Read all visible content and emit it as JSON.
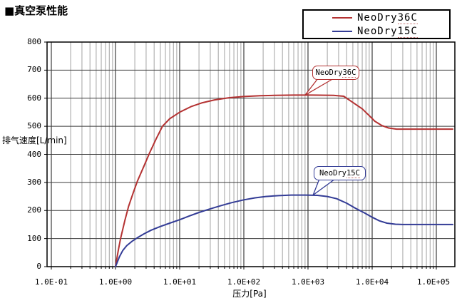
{
  "page": {
    "title": "■真空泵性能"
  },
  "legend": {
    "items": [
      {
        "label": "NeoDry36C",
        "label_base": "NeoDry",
        "label_suffix": "36C",
        "color": "#b43232"
      },
      {
        "label": "NeoDry15C",
        "label_base": "NeoDry",
        "label_suffix": "15C",
        "color": "#333c96"
      }
    ]
  },
  "chart_data": {
    "type": "line",
    "title": "真空泵性能",
    "xlabel": "压力[Pa]",
    "ylabel": "排气速度[L/min]",
    "x_scale": "log",
    "xlim": [
      0.1,
      180000
    ],
    "ylim": [
      0,
      800
    ],
    "grid": "on",
    "legend_position": "top-right",
    "x_ticks": [
      "1.0E-01",
      "1.0E+00",
      "1.0E+01",
      "1.0E+02",
      "1.0E+03",
      "1.0E+04",
      "1.0E+05"
    ],
    "y_ticks": [
      "800",
      "700",
      "600",
      "500",
      "400",
      "300",
      "200",
      "100",
      "0"
    ],
    "colors": {
      "neodry36c": "#b43232",
      "neodry15c": "#333c96",
      "grid_major": "#3c3c3c",
      "grid_minor": "#a2a2a2",
      "frame": "#000000"
    },
    "series": [
      {
        "name": "NeoDry36C",
        "color": "#b43232",
        "points": [
          [
            1.0,
            0
          ],
          [
            1.1,
            55
          ],
          [
            1.2,
            100
          ],
          [
            1.4,
            165
          ],
          [
            1.6,
            215
          ],
          [
            1.9,
            265
          ],
          [
            2.2,
            305
          ],
          [
            2.8,
            360
          ],
          [
            3.4,
            405
          ],
          [
            4.3,
            455
          ],
          [
            5.4,
            500
          ],
          [
            7,
            527
          ],
          [
            10,
            550
          ],
          [
            15,
            570
          ],
          [
            22,
            583
          ],
          [
            35,
            594
          ],
          [
            60,
            602
          ],
          [
            100,
            606
          ],
          [
            180,
            609
          ],
          [
            300,
            610
          ],
          [
            600,
            611
          ],
          [
            1200,
            611
          ],
          [
            2500,
            610
          ],
          [
            3600,
            607
          ],
          [
            5000,
            585
          ],
          [
            7000,
            562
          ],
          [
            9000,
            538
          ],
          [
            11000,
            518
          ],
          [
            14000,
            503
          ],
          [
            18000,
            494
          ],
          [
            24000,
            490
          ],
          [
            40000,
            490
          ],
          [
            100000,
            490
          ],
          [
            180000,
            490
          ]
        ]
      },
      {
        "name": "NeoDry15C",
        "color": "#333c96",
        "points": [
          [
            1.0,
            0
          ],
          [
            1.15,
            35
          ],
          [
            1.3,
            58
          ],
          [
            1.5,
            75
          ],
          [
            1.8,
            90
          ],
          [
            2.2,
            103
          ],
          [
            2.8,
            117
          ],
          [
            3.6,
            130
          ],
          [
            5,
            143
          ],
          [
            7,
            155
          ],
          [
            10,
            167
          ],
          [
            14,
            180
          ],
          [
            20,
            193
          ],
          [
            30,
            206
          ],
          [
            45,
            218
          ],
          [
            65,
            228
          ],
          [
            100,
            238
          ],
          [
            150,
            245
          ],
          [
            220,
            250
          ],
          [
            350,
            253
          ],
          [
            550,
            255
          ],
          [
            900,
            255
          ],
          [
            1400,
            254
          ],
          [
            2000,
            250
          ],
          [
            2800,
            242
          ],
          [
            4000,
            226
          ],
          [
            5500,
            208
          ],
          [
            7500,
            192
          ],
          [
            10000,
            176
          ],
          [
            13000,
            163
          ],
          [
            17000,
            155
          ],
          [
            23000,
            151
          ],
          [
            30000,
            150
          ],
          [
            100000,
            150
          ],
          [
            180000,
            150
          ]
        ]
      }
    ],
    "annotations": [
      {
        "label": "NeoDry36C",
        "label_base": "NeoDry",
        "label_suffix": "36C",
        "anchor_pa": 900,
        "anchor_speed": 611,
        "color": "#b43232"
      },
      {
        "label": "NeoDry15C",
        "label_base": "NeoDry",
        "label_suffix": "15C",
        "anchor_pa": 1200,
        "anchor_speed": 255,
        "color": "#333c96"
      }
    ]
  }
}
